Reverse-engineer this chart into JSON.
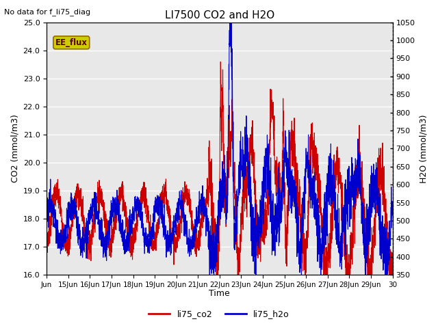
{
  "title": "LI7500 CO2 and H2O",
  "top_left_text": "No data for f_li75_diag",
  "xlabel": "Time",
  "ylabel_left": "CO2 (mmol/m3)",
  "ylabel_right": "H2O (mmol/m3)",
  "ylim_left": [
    16.0,
    25.0
  ],
  "ylim_right": [
    350,
    1050
  ],
  "yticks_left": [
    16.0,
    17.0,
    18.0,
    19.0,
    20.0,
    21.0,
    22.0,
    23.0,
    24.0,
    25.0
  ],
  "yticks_right": [
    350,
    400,
    450,
    500,
    550,
    600,
    650,
    700,
    750,
    800,
    850,
    900,
    950,
    1000,
    1050
  ],
  "xlim": [
    14,
    30
  ],
  "xtick_positions": [
    14,
    15,
    16,
    17,
    18,
    19,
    20,
    21,
    22,
    23,
    24,
    25,
    26,
    27,
    28,
    29,
    30
  ],
  "xtick_labels": [
    "Jun",
    "15Jun",
    "16Jun",
    "17Jun",
    "18Jun",
    "19Jun",
    "20Jun",
    "21Jun",
    "22Jun",
    "23Jun",
    "24Jun",
    "25Jun",
    "26Jun",
    "27Jun",
    "28Jun",
    "29Jun",
    "30"
  ],
  "co2_color": "#cc0000",
  "h2o_color": "#0000cc",
  "legend_label_co2": "li75_co2",
  "legend_label_h2o": "li75_h2o",
  "ee_flux_label": "EE_flux",
  "ee_flux_bg": "#cccc00",
  "ee_flux_border": "#996600",
  "background_color": "#e8e8e8",
  "grid_color": "#ffffff",
  "linewidth": 0.8
}
